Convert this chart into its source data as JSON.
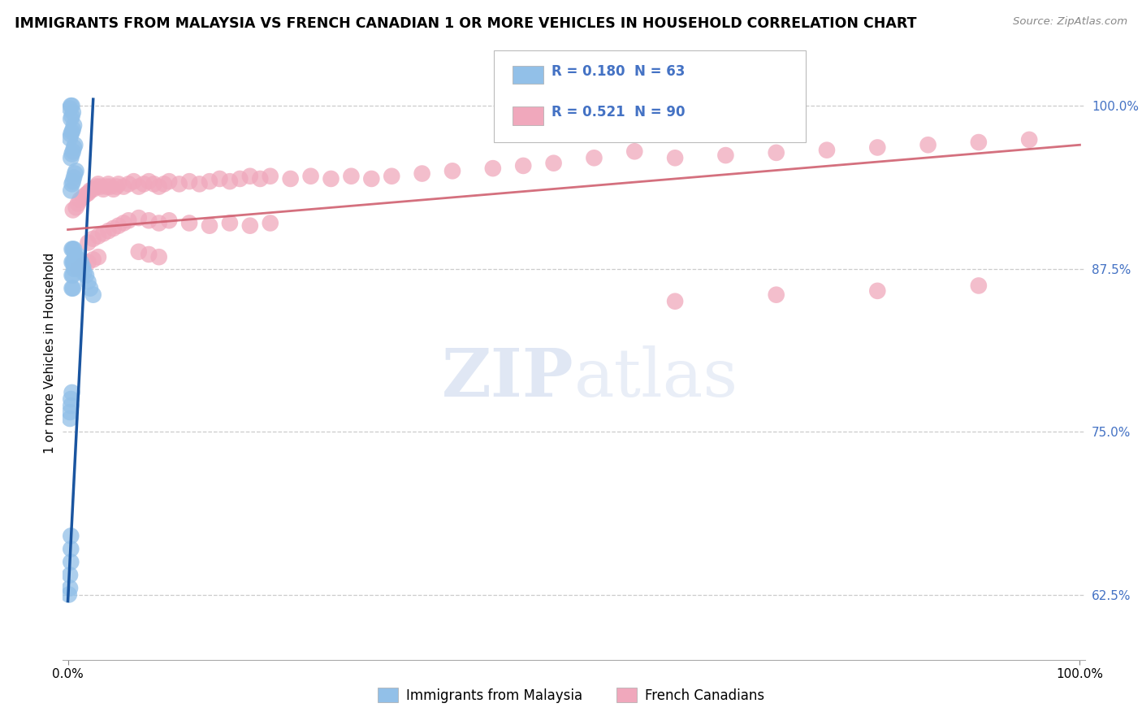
{
  "title": "IMMIGRANTS FROM MALAYSIA VS FRENCH CANADIAN 1 OR MORE VEHICLES IN HOUSEHOLD CORRELATION CHART",
  "source": "Source: ZipAtlas.com",
  "ylabel": "1 or more Vehicles in Household",
  "ytick_labels": [
    "62.5%",
    "75.0%",
    "87.5%",
    "100.0%"
  ],
  "ytick_values": [
    0.625,
    0.75,
    0.875,
    1.0
  ],
  "xlim": [
    -0.005,
    1.005
  ],
  "ylim": [
    0.575,
    1.045
  ],
  "legend_blue_label": "Immigrants from Malaysia",
  "legend_pink_label": "French Canadians",
  "R_blue": 0.18,
  "N_blue": 63,
  "R_pink": 0.521,
  "N_pink": 90,
  "blue_color": "#92C0E8",
  "pink_color": "#F0A8BC",
  "blue_line_color": "#1A55A0",
  "pink_line_color": "#D06070",
  "watermark_color": "#C8D8F0",
  "blue_x": [
    0.001,
    0.002,
    0.002,
    0.003,
    0.003,
    0.003,
    0.004,
    0.004,
    0.004,
    0.004,
    0.005,
    0.005,
    0.005,
    0.005,
    0.006,
    0.006,
    0.006,
    0.007,
    0.007,
    0.007,
    0.008,
    0.008,
    0.009,
    0.009,
    0.01,
    0.01,
    0.011,
    0.012,
    0.013,
    0.014,
    0.015,
    0.016,
    0.018,
    0.02,
    0.022,
    0.025,
    0.003,
    0.004,
    0.005,
    0.006,
    0.007,
    0.008,
    0.003,
    0.004,
    0.005,
    0.006,
    0.007,
    0.002,
    0.003,
    0.004,
    0.005,
    0.006,
    0.003,
    0.004,
    0.005,
    0.002,
    0.003,
    0.004,
    0.002,
    0.002,
    0.003,
    0.003,
    0.004
  ],
  "blue_y": [
    0.625,
    0.63,
    0.64,
    0.65,
    0.66,
    0.67,
    0.86,
    0.87,
    0.88,
    0.89,
    0.86,
    0.87,
    0.88,
    0.89,
    0.875,
    0.88,
    0.89,
    0.875,
    0.88,
    0.885,
    0.878,
    0.882,
    0.878,
    0.883,
    0.88,
    0.885,
    0.882,
    0.878,
    0.88,
    0.875,
    0.876,
    0.872,
    0.87,
    0.865,
    0.86,
    0.855,
    0.935,
    0.94,
    0.942,
    0.945,
    0.948,
    0.95,
    0.96,
    0.963,
    0.965,
    0.968,
    0.97,
    0.975,
    0.978,
    0.98,
    0.982,
    0.985,
    0.99,
    0.992,
    0.995,
    0.998,
    1.0,
    1.0,
    0.76,
    0.765,
    0.77,
    0.775,
    0.78
  ],
  "pink_x": [
    0.005,
    0.008,
    0.01,
    0.012,
    0.015,
    0.018,
    0.02,
    0.022,
    0.025,
    0.028,
    0.03,
    0.032,
    0.035,
    0.038,
    0.04,
    0.042,
    0.045,
    0.048,
    0.05,
    0.055,
    0.06,
    0.065,
    0.07,
    0.075,
    0.08,
    0.085,
    0.09,
    0.095,
    0.1,
    0.11,
    0.12,
    0.13,
    0.14,
    0.15,
    0.16,
    0.17,
    0.18,
    0.19,
    0.2,
    0.22,
    0.24,
    0.26,
    0.28,
    0.3,
    0.32,
    0.35,
    0.38,
    0.42,
    0.45,
    0.48,
    0.52,
    0.56,
    0.02,
    0.025,
    0.03,
    0.035,
    0.04,
    0.045,
    0.05,
    0.055,
    0.06,
    0.07,
    0.08,
    0.09,
    0.1,
    0.12,
    0.14,
    0.16,
    0.18,
    0.2,
    0.01,
    0.015,
    0.02,
    0.025,
    0.03,
    0.6,
    0.65,
    0.7,
    0.75,
    0.8,
    0.85,
    0.9,
    0.95,
    0.6,
    0.7,
    0.8,
    0.9,
    0.07,
    0.08,
    0.09
  ],
  "pink_y": [
    0.92,
    0.922,
    0.925,
    0.928,
    0.93,
    0.932,
    0.933,
    0.935,
    0.936,
    0.938,
    0.94,
    0.938,
    0.936,
    0.938,
    0.94,
    0.938,
    0.936,
    0.938,
    0.94,
    0.938,
    0.94,
    0.942,
    0.938,
    0.94,
    0.942,
    0.94,
    0.938,
    0.94,
    0.942,
    0.94,
    0.942,
    0.94,
    0.942,
    0.944,
    0.942,
    0.944,
    0.946,
    0.944,
    0.946,
    0.944,
    0.946,
    0.944,
    0.946,
    0.944,
    0.946,
    0.948,
    0.95,
    0.952,
    0.954,
    0.956,
    0.96,
    0.965,
    0.895,
    0.898,
    0.9,
    0.902,
    0.904,
    0.906,
    0.908,
    0.91,
    0.912,
    0.914,
    0.912,
    0.91,
    0.912,
    0.91,
    0.908,
    0.91,
    0.908,
    0.91,
    0.875,
    0.878,
    0.88,
    0.882,
    0.884,
    0.96,
    0.962,
    0.964,
    0.966,
    0.968,
    0.97,
    0.972,
    0.974,
    0.85,
    0.855,
    0.858,
    0.862,
    0.888,
    0.886,
    0.884
  ],
  "blue_trend_x": [
    0.0,
    0.025
  ],
  "blue_trend_y": [
    0.62,
    1.005
  ],
  "pink_trend_x": [
    0.0,
    1.0
  ],
  "pink_trend_y": [
    0.905,
    0.97
  ]
}
